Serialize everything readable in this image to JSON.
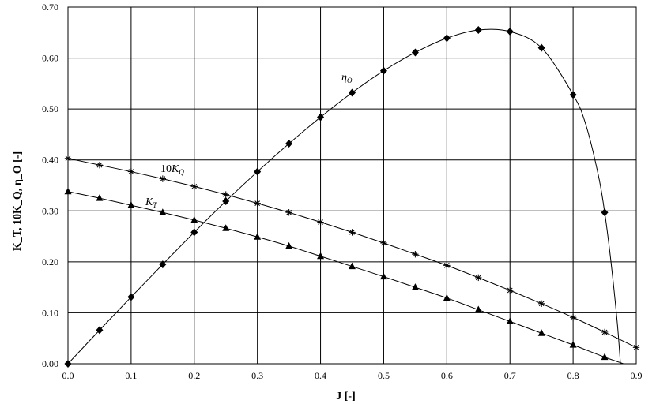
{
  "chart_data": {
    "type": "scatter",
    "xlabel": "J [-]",
    "ylabel": "K_T, 10K_Q, η_O [-]",
    "xlim": [
      0.0,
      0.9
    ],
    "ylim": [
      0.0,
      0.7
    ],
    "x_ticks": [
      "0.0",
      "0.1",
      "0.2",
      "0.3",
      "0.4",
      "0.5",
      "0.6",
      "0.7",
      "0.8",
      "0.9"
    ],
    "y_ticks": [
      "0.00",
      "0.10",
      "0.20",
      "0.30",
      "0.40",
      "0.50",
      "0.60",
      "0.70"
    ],
    "grid": true,
    "series": [
      {
        "name": "η_O",
        "label_text": "η",
        "label_sub": "O",
        "marker": "diamond",
        "x": [
          0.0,
          0.05,
          0.1,
          0.15,
          0.2,
          0.25,
          0.3,
          0.35,
          0.4,
          0.45,
          0.5,
          0.55,
          0.6,
          0.65,
          0.7,
          0.75,
          0.8,
          0.85
        ],
        "y": [
          0.0,
          0.066,
          0.131,
          0.195,
          0.258,
          0.319,
          0.377,
          0.432,
          0.484,
          0.532,
          0.575,
          0.611,
          0.639,
          0.655,
          0.652,
          0.62,
          0.528,
          0.297
        ],
        "curve_x": [
          0.0,
          0.05,
          0.1,
          0.15,
          0.2,
          0.25,
          0.3,
          0.35,
          0.4,
          0.45,
          0.5,
          0.55,
          0.6,
          0.65,
          0.7,
          0.75,
          0.8,
          0.82,
          0.84,
          0.85,
          0.86,
          0.87,
          0.875
        ],
        "curve_y": [
          0.0,
          0.066,
          0.131,
          0.195,
          0.258,
          0.319,
          0.377,
          0.432,
          0.484,
          0.532,
          0.575,
          0.611,
          0.639,
          0.655,
          0.652,
          0.62,
          0.528,
          0.47,
          0.37,
          0.297,
          0.2,
          0.08,
          0.0
        ]
      },
      {
        "name": "10K_Q",
        "label_text": "10K",
        "label_sub": "Q",
        "marker": "star",
        "x": [
          0.0,
          0.05,
          0.1,
          0.15,
          0.2,
          0.25,
          0.3,
          0.35,
          0.4,
          0.45,
          0.5,
          0.55,
          0.6,
          0.65,
          0.7,
          0.75,
          0.8,
          0.85,
          0.9
        ],
        "y": [
          0.403,
          0.39,
          0.377,
          0.363,
          0.348,
          0.332,
          0.315,
          0.297,
          0.278,
          0.258,
          0.237,
          0.215,
          0.193,
          0.169,
          0.144,
          0.118,
          0.091,
          0.062,
          0.032
        ],
        "curve_x": [
          0.0,
          0.05,
          0.1,
          0.15,
          0.2,
          0.25,
          0.3,
          0.35,
          0.4,
          0.45,
          0.5,
          0.55,
          0.6,
          0.65,
          0.7,
          0.75,
          0.8,
          0.85,
          0.9
        ],
        "curve_y": [
          0.403,
          0.39,
          0.377,
          0.363,
          0.348,
          0.332,
          0.315,
          0.297,
          0.278,
          0.258,
          0.237,
          0.215,
          0.193,
          0.169,
          0.144,
          0.118,
          0.091,
          0.062,
          0.032
        ]
      },
      {
        "name": "K_T",
        "label_text": "K",
        "label_sub": "T",
        "marker": "triangle",
        "x": [
          0.0,
          0.05,
          0.1,
          0.15,
          0.2,
          0.25,
          0.3,
          0.35,
          0.4,
          0.45,
          0.5,
          0.55,
          0.6,
          0.65,
          0.7,
          0.75,
          0.8,
          0.85
        ],
        "y": [
          0.338,
          0.325,
          0.311,
          0.297,
          0.282,
          0.266,
          0.249,
          0.231,
          0.211,
          0.191,
          0.171,
          0.15,
          0.129,
          0.106,
          0.083,
          0.06,
          0.037,
          0.013
        ],
        "curve_x": [
          0.0,
          0.05,
          0.1,
          0.15,
          0.2,
          0.25,
          0.3,
          0.35,
          0.4,
          0.45,
          0.5,
          0.55,
          0.6,
          0.65,
          0.7,
          0.75,
          0.8,
          0.85,
          0.88
        ],
        "curve_y": [
          0.338,
          0.325,
          0.311,
          0.297,
          0.282,
          0.266,
          0.249,
          0.231,
          0.211,
          0.191,
          0.171,
          0.15,
          0.129,
          0.106,
          0.083,
          0.06,
          0.037,
          0.013,
          0.0
        ]
      }
    ]
  }
}
